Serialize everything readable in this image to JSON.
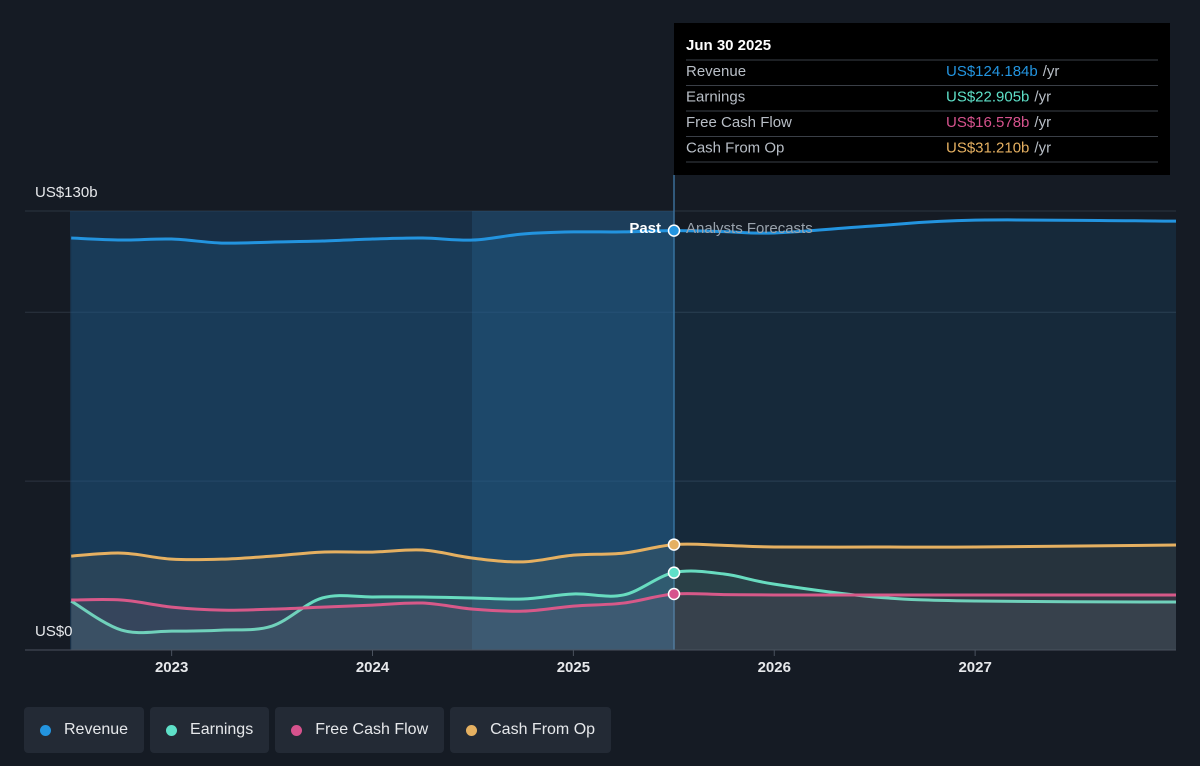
{
  "chart_data": {
    "type": "line",
    "x": [
      2022.5,
      2022.75,
      2023.0,
      2023.25,
      2023.5,
      2023.75,
      2024.0,
      2024.25,
      2024.5,
      2024.75,
      2025.0,
      2025.25,
      2025.5,
      2025.75,
      2026.0,
      2026.5,
      2027.0,
      2028.0
    ],
    "xlim": [
      2022.27,
      2028.0
    ],
    "xticks": [
      2023,
      2024,
      2025,
      2026,
      2027
    ],
    "ylim": [
      0,
      130
    ],
    "yticks": [
      {
        "value": 0,
        "label": "US$0"
      },
      {
        "value": 50,
        "label": null
      },
      {
        "value": 100,
        "label": null
      },
      {
        "value": 130,
        "label": "US$130b"
      }
    ],
    "grid": true,
    "annotations": {
      "past": "Past",
      "forecast": "Analysts Forecasts"
    },
    "series": [
      {
        "name": "Revenue",
        "color": "#2394df",
        "values": [
          122.0,
          121.4,
          121.7,
          120.5,
          120.8,
          121.1,
          121.7,
          122.0,
          121.4,
          123.2,
          123.8,
          123.8,
          124.184,
          123.9,
          123.5,
          125.6,
          127.3,
          127.0
        ]
      },
      {
        "name": "Earnings",
        "color": "#5ee0c8",
        "values": [
          14.5,
          5.9,
          5.6,
          5.9,
          7.1,
          15.4,
          15.7,
          15.7,
          15.4,
          15.1,
          16.6,
          16.3,
          22.905,
          22.5,
          19.5,
          15.7,
          14.5,
          14.2
        ]
      },
      {
        "name": "Free Cash Flow",
        "color": "#d6528d",
        "values": [
          14.8,
          14.8,
          12.7,
          11.8,
          12.1,
          12.7,
          13.3,
          13.9,
          12.1,
          11.5,
          13.0,
          13.9,
          16.578,
          16.4,
          16.3,
          16.3,
          16.3,
          16.3
        ]
      },
      {
        "name": "Cash From Op",
        "color": "#e5b061",
        "values": [
          27.8,
          28.7,
          26.9,
          26.9,
          27.8,
          29.0,
          29.0,
          29.6,
          27.2,
          26.1,
          28.1,
          28.7,
          31.21,
          31.0,
          30.5,
          30.5,
          30.5,
          31.1
        ]
      }
    ],
    "tooltip": {
      "title": "Jun 30 2025",
      "unit": "/yr",
      "value_labels": [
        "US$124.184b",
        "US$22.905b",
        "US$16.578b",
        "US$31.210b"
      ]
    }
  }
}
